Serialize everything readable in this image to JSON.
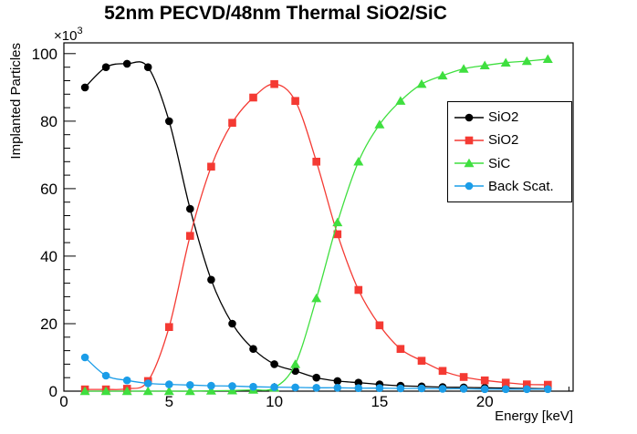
{
  "chart_data": {
    "type": "line",
    "title": "52nm PECVD/48nm Thermal SiO2/SiC",
    "xlabel": "Energy [keV]",
    "ylabel": "Implanted Particles",
    "y_multiplier_base": "×10",
    "y_multiplier_exp": "3",
    "xlim": [
      0,
      24.2
    ],
    "ylim": [
      0,
      103.2
    ],
    "x_major_ticks": [
      0,
      5,
      10,
      15,
      20
    ],
    "x_minor_step": 1,
    "y_major_ticks": [
      0,
      20,
      40,
      60,
      80,
      100
    ],
    "y_minor_step": 4,
    "grid": false,
    "legend_position": "middle-right",
    "x": [
      1,
      2,
      3,
      4,
      5,
      6,
      7,
      8,
      9,
      10,
      11,
      12,
      13,
      14,
      15,
      16,
      17,
      18,
      19,
      20,
      21,
      22,
      23
    ],
    "series": [
      {
        "name": "SiO2",
        "color": "#000000",
        "marker": "circle",
        "values": [
          90,
          96,
          97,
          96,
          80,
          54,
          33,
          20,
          12.5,
          8,
          6,
          4,
          3,
          2.5,
          2,
          1.6,
          1.4,
          1.2,
          1.1,
          1,
          0.9,
          0.8,
          0.7
        ]
      },
      {
        "name": "SiO2",
        "color": "#f43a33",
        "marker": "square",
        "values": [
          0.5,
          0.5,
          0.7,
          3,
          19,
          46,
          66.5,
          79.5,
          87,
          91,
          86,
          68,
          46.5,
          30,
          19.5,
          12.5,
          9,
          6,
          4.2,
          3.2,
          2.5,
          2,
          1.9
        ]
      },
      {
        "name": "SiC",
        "color": "#3fdf3f",
        "marker": "triangle",
        "values": [
          0,
          0,
          0,
          0,
          0,
          0,
          0.1,
          0.2,
          0.4,
          1,
          8,
          27.5,
          50,
          68,
          79,
          86,
          91,
          93.5,
          95.5,
          96.5,
          97.3,
          97.8,
          98.4
        ]
      },
      {
        "name": "Back Scat.",
        "color": "#1b9de8",
        "marker": "circle",
        "values": [
          10,
          4.6,
          3.2,
          2.3,
          2,
          1.8,
          1.6,
          1.5,
          1.3,
          1.2,
          1.1,
          1,
          1,
          0.9,
          0.9,
          0.8,
          0.8,
          0.7,
          0.7,
          0.6,
          0.6,
          0.6,
          0.6
        ]
      }
    ]
  }
}
